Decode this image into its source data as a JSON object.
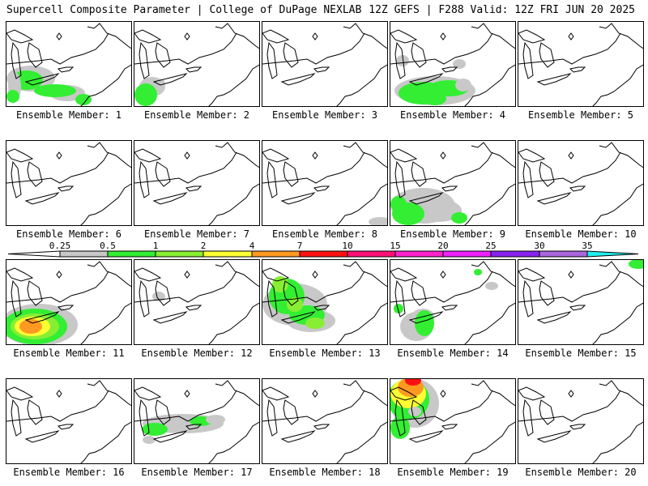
{
  "header": {
    "title": "Supercell Composite Parameter | College of DuPage NEXLAB",
    "run_info": "12Z GEFS | F288 Valid: 12Z FRI JUN 20 2025"
  },
  "colorbar": {
    "ticks": [
      "0.25",
      "0.5",
      "1",
      "2",
      "4",
      "7",
      "10",
      "15",
      "20",
      "25",
      "30",
      "35"
    ],
    "colors": [
      "#c8c8c8",
      "#33ee33",
      "#88ee33",
      "#ffff33",
      "#ff9922",
      "#ff1111",
      "#ff1177",
      "#ff22cc",
      "#ee22ff",
      "#8822ee",
      "#aa66dd",
      "#22eeee"
    ]
  },
  "members": [
    {
      "label": "Ensemble Member: 1",
      "blobs": [
        [
          30,
          70,
          30,
          16,
          "#c8c8c8"
        ],
        [
          75,
          88,
          22,
          10,
          "#c8c8c8"
        ],
        [
          25,
          72,
          20,
          12,
          "#33ee33"
        ],
        [
          60,
          85,
          26,
          8,
          "#33ee33"
        ],
        [
          95,
          96,
          10,
          7,
          "#33ee33"
        ],
        [
          10,
          80,
          8,
          18,
          "#c8c8c8"
        ],
        [
          8,
          92,
          8,
          8,
          "#33ee33"
        ]
      ]
    },
    {
      "label": "Ensemble Member: 2",
      "blobs": [
        [
          22,
          80,
          16,
          12,
          "#c8c8c8"
        ],
        [
          14,
          90,
          14,
          14,
          "#33ee33"
        ],
        [
          30,
          76,
          8,
          6,
          "#c8c8c8"
        ]
      ]
    },
    {
      "label": "Ensemble Member: 3",
      "blobs": []
    },
    {
      "label": "Ensemble Member: 4",
      "blobs": [
        [
          55,
          85,
          50,
          18,
          "#c8c8c8"
        ],
        [
          40,
          88,
          30,
          14,
          "#33ee33"
        ],
        [
          72,
          82,
          25,
          10,
          "#33ee33"
        ],
        [
          55,
          95,
          14,
          8,
          "#33ee33"
        ],
        [
          90,
          78,
          10,
          8,
          "#c8c8c8"
        ],
        [
          15,
          48,
          8,
          7,
          "#c8c8c8"
        ],
        [
          85,
          52,
          8,
          6,
          "#c8c8c8"
        ]
      ]
    },
    {
      "label": "Ensemble Member: 5",
      "blobs": []
    },
    {
      "label": "Ensemble Member: 6",
      "blobs": []
    },
    {
      "label": "Ensemble Member: 7",
      "blobs": []
    },
    {
      "label": "Ensemble Member: 8",
      "blobs": [
        [
          145,
          100,
          14,
          6,
          "#c8c8c8"
        ]
      ]
    },
    {
      "label": "Ensemble Member: 9",
      "blobs": [
        [
          40,
          80,
          40,
          22,
          "#c8c8c8"
        ],
        [
          60,
          86,
          28,
          14,
          "#c8c8c8"
        ],
        [
          22,
          90,
          20,
          14,
          "#33ee33"
        ],
        [
          10,
          78,
          10,
          10,
          "#33ee33"
        ],
        [
          85,
          95,
          10,
          7,
          "#33ee33"
        ]
      ]
    },
    {
      "label": "Ensemble Member: 10",
      "blobs": []
    },
    {
      "label": "Ensemble Member: 11",
      "blobs": [
        [
          40,
          80,
          48,
          26,
          "#c8c8c8"
        ],
        [
          35,
          82,
          40,
          22,
          "#33ee33"
        ],
        [
          35,
          82,
          30,
          16,
          "#88ee33"
        ],
        [
          32,
          82,
          22,
          12,
          "#ffff33"
        ],
        [
          30,
          82,
          14,
          9,
          "#ff9922"
        ]
      ]
    },
    {
      "label": "Ensemble Member: 12",
      "blobs": [
        [
          30,
          45,
          8,
          6,
          "#c8c8c8"
        ]
      ]
    },
    {
      "label": "Ensemble Member: 13",
      "blobs": [
        [
          40,
          55,
          40,
          26,
          "#c8c8c8"
        ],
        [
          60,
          75,
          30,
          14,
          "#c8c8c8"
        ],
        [
          30,
          45,
          22,
          22,
          "#33ee33"
        ],
        [
          55,
          68,
          22,
          12,
          "#33ee33"
        ],
        [
          22,
          30,
          10,
          10,
          "#88ee33"
        ],
        [
          40,
          55,
          10,
          9,
          "#88ee33"
        ],
        [
          65,
          78,
          12,
          7,
          "#88ee33"
        ]
      ]
    },
    {
      "label": "Ensemble Member: 14",
      "blobs": [
        [
          40,
          70,
          14,
          10,
          "#c8c8c8"
        ],
        [
          32,
          82,
          20,
          18,
          "#c8c8c8"
        ],
        [
          42,
          78,
          12,
          16,
          "#33ee33"
        ],
        [
          108,
          15,
          5,
          4,
          "#33ee33"
        ],
        [
          125,
          32,
          8,
          5,
          "#c8c8c8"
        ],
        [
          10,
          60,
          6,
          6,
          "#33ee33"
        ]
      ]
    },
    {
      "label": "Ensemble Member: 15",
      "blobs": [
        [
          148,
          5,
          12,
          6,
          "#33ee33"
        ]
      ]
    },
    {
      "label": "Ensemble Member: 16",
      "blobs": []
    },
    {
      "label": "Ensemble Member: 17",
      "blobs": [
        [
          60,
          55,
          50,
          12,
          "#c8c8c8"
        ],
        [
          25,
          62,
          16,
          8,
          "#33ee33"
        ],
        [
          82,
          52,
          14,
          6,
          "#33ee33"
        ],
        [
          100,
          50,
          12,
          6,
          "#c8c8c8"
        ],
        [
          18,
          75,
          8,
          5,
          "#c8c8c8"
        ]
      ]
    },
    {
      "label": "Ensemble Member: 18",
      "blobs": []
    },
    {
      "label": "Ensemble Member: 19",
      "blobs": [
        [
          30,
          30,
          30,
          30,
          "#c8c8c8"
        ],
        [
          22,
          25,
          26,
          25,
          "#33ee33"
        ],
        [
          22,
          18,
          22,
          18,
          "#ffff33"
        ],
        [
          25,
          10,
          16,
          12,
          "#ff9922"
        ],
        [
          28,
          2,
          10,
          6,
          "#ff1111"
        ],
        [
          12,
          60,
          12,
          14,
          "#33ee33"
        ],
        [
          30,
          40,
          8,
          6,
          "#c8c8c8"
        ]
      ]
    },
    {
      "label": "Ensemble Member: 20",
      "blobs": []
    }
  ]
}
